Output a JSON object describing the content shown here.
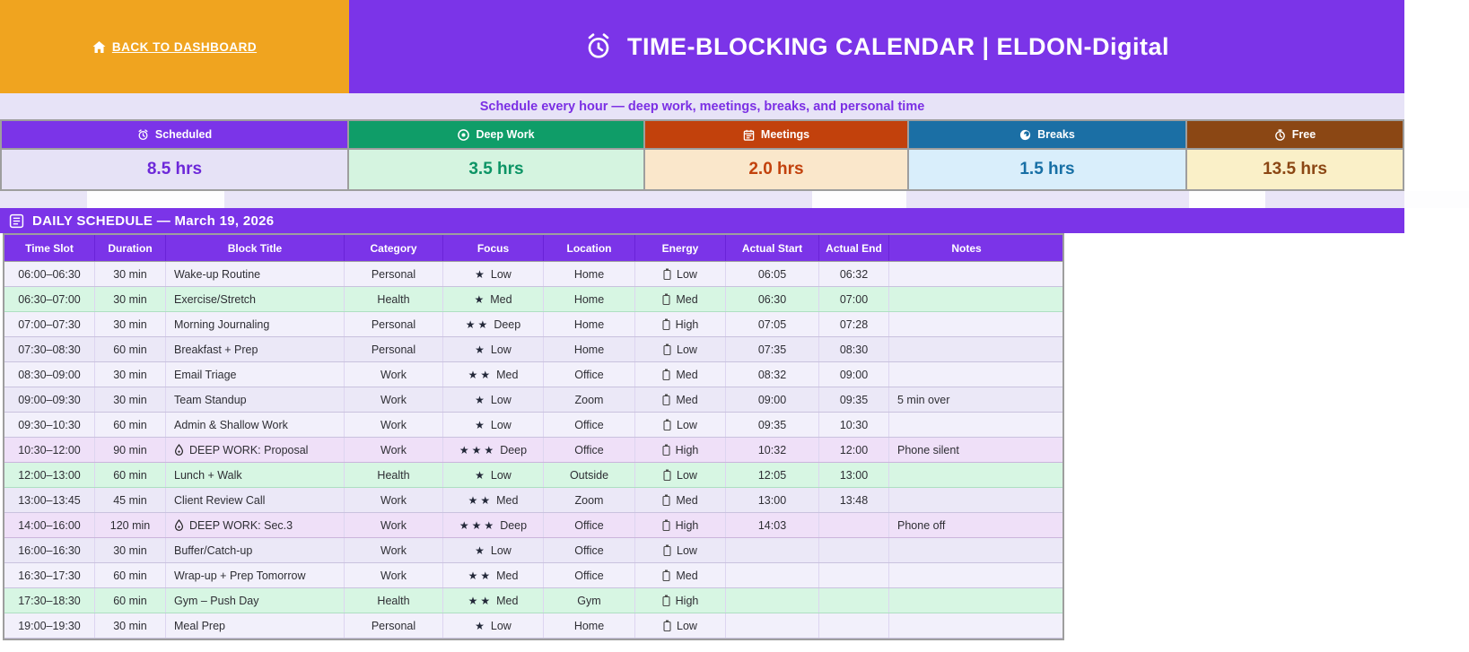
{
  "header": {
    "back_button": "BACK TO DASHBOARD",
    "title": "TIME-BLOCKING CALENDAR  |  ELDON-Digital",
    "subtitle": "Schedule every hour — deep work, meetings, breaks, and personal time",
    "brand_orange": "#F0A41F",
    "brand_purple": "#7B34E8"
  },
  "stats": [
    {
      "label": "Scheduled",
      "value": "8.5 hrs",
      "icon": "alarm-clock-icon",
      "header_bg": "#7B34E8",
      "value_bg": "#E6E2F6",
      "value_color": "#6D28D9"
    },
    {
      "label": "Deep Work",
      "value": "3.5 hrs",
      "icon": "target-icon",
      "header_bg": "#0F9D68",
      "value_bg": "#D5F4E0",
      "value_color": "#0C9465"
    },
    {
      "label": "Meetings",
      "value": "2.0 hrs",
      "icon": "calendar-icon",
      "header_bg": "#C2410C",
      "value_bg": "#FAE7CB",
      "value_color": "#C2410C"
    },
    {
      "label": "Breaks",
      "value": "1.5 hrs",
      "icon": "break-icon",
      "header_bg": "#1B6FA5",
      "value_bg": "#D9EEFB",
      "value_color": "#176FA5"
    },
    {
      "label": "Free",
      "value": "13.5 hrs",
      "icon": "stopwatch-icon",
      "header_bg": "#8B4714",
      "value_bg": "#FAF0C8",
      "value_color": "#8B4714"
    }
  ],
  "section": {
    "title": "DAILY SCHEDULE — March 19, 2026",
    "icon": "calendar-page-icon"
  },
  "table": {
    "columns": [
      "Time Slot",
      "Duration",
      "Block Title",
      "Category",
      "Focus",
      "Location",
      "Energy",
      "Actual Start",
      "Actual End",
      "Notes"
    ],
    "rows": [
      {
        "time": "06:00–06:30",
        "duration": "30 min",
        "title": "Wake-up Routine",
        "deep": false,
        "category": "Personal",
        "stars": 1,
        "focus": "Low",
        "location": "Home",
        "energy": "Low",
        "start": "06:05",
        "end": "06:32",
        "notes": "",
        "type": "default"
      },
      {
        "time": "06:30–07:00",
        "duration": "30 min",
        "title": "Exercise/Stretch",
        "deep": false,
        "category": "Health",
        "stars": 1,
        "focus": "Med",
        "location": "Home",
        "energy": "Med",
        "start": "06:30",
        "end": "07:00",
        "notes": "",
        "type": "health"
      },
      {
        "time": "07:00–07:30",
        "duration": "30 min",
        "title": "Morning Journaling",
        "deep": false,
        "category": "Personal",
        "stars": 2,
        "focus": "Deep",
        "location": "Home",
        "energy": "High",
        "start": "07:05",
        "end": "07:28",
        "notes": "",
        "type": "default"
      },
      {
        "time": "07:30–08:30",
        "duration": "60 min",
        "title": "Breakfast + Prep",
        "deep": false,
        "category": "Personal",
        "stars": 1,
        "focus": "Low",
        "location": "Home",
        "energy": "Low",
        "start": "07:35",
        "end": "08:30",
        "notes": "",
        "type": "default"
      },
      {
        "time": "08:30–09:00",
        "duration": "30 min",
        "title": "Email Triage",
        "deep": false,
        "category": "Work",
        "stars": 2,
        "focus": "Med",
        "location": "Office",
        "energy": "Med",
        "start": "08:32",
        "end": "09:00",
        "notes": "",
        "type": "default"
      },
      {
        "time": "09:00–09:30",
        "duration": "30 min",
        "title": "Team Standup",
        "deep": false,
        "category": "Work",
        "stars": 1,
        "focus": "Low",
        "location": "Zoom",
        "energy": "Med",
        "start": "09:00",
        "end": "09:35",
        "notes": "5 min over",
        "type": "default"
      },
      {
        "time": "09:30–10:30",
        "duration": "60 min",
        "title": "Admin & Shallow Work",
        "deep": false,
        "category": "Work",
        "stars": 1,
        "focus": "Low",
        "location": "Office",
        "energy": "Low",
        "start": "09:35",
        "end": "10:30",
        "notes": "",
        "type": "default"
      },
      {
        "time": "10:30–12:00",
        "duration": "90 min",
        "title": "DEEP WORK: Proposal",
        "deep": true,
        "category": "Work",
        "stars": 3,
        "focus": "Deep",
        "location": "Office",
        "energy": "High",
        "start": "10:32",
        "end": "12:00",
        "notes": "Phone silent",
        "type": "deepwork"
      },
      {
        "time": "12:00–13:00",
        "duration": "60 min",
        "title": "Lunch + Walk",
        "deep": false,
        "category": "Health",
        "stars": 1,
        "focus": "Low",
        "location": "Outside",
        "energy": "Low",
        "start": "12:05",
        "end": "13:00",
        "notes": "",
        "type": "health"
      },
      {
        "time": "13:00–13:45",
        "duration": "45 min",
        "title": "Client Review Call",
        "deep": false,
        "category": "Work",
        "stars": 2,
        "focus": "Med",
        "location": "Zoom",
        "energy": "Med",
        "start": "13:00",
        "end": "13:48",
        "notes": "",
        "type": "default"
      },
      {
        "time": "14:00–16:00",
        "duration": "120 min",
        "title": "DEEP WORK: Sec.3",
        "deep": true,
        "category": "Work",
        "stars": 3,
        "focus": "Deep",
        "location": "Office",
        "energy": "High",
        "start": "14:03",
        "end": "",
        "notes": "Phone off",
        "type": "deepwork"
      },
      {
        "time": "16:00–16:30",
        "duration": "30 min",
        "title": "Buffer/Catch-up",
        "deep": false,
        "category": "Work",
        "stars": 1,
        "focus": "Low",
        "location": "Office",
        "energy": "Low",
        "start": "",
        "end": "",
        "notes": "",
        "type": "default"
      },
      {
        "time": "16:30–17:30",
        "duration": "60 min",
        "title": "Wrap-up + Prep Tomorrow",
        "deep": false,
        "category": "Work",
        "stars": 2,
        "focus": "Med",
        "location": "Office",
        "energy": "Med",
        "start": "",
        "end": "",
        "notes": "",
        "type": "default"
      },
      {
        "time": "17:30–18:30",
        "duration": "60 min",
        "title": "Gym – Push Day",
        "deep": false,
        "category": "Health",
        "stars": 2,
        "focus": "Med",
        "location": "Gym",
        "energy": "High",
        "start": "",
        "end": "",
        "notes": "",
        "type": "health"
      },
      {
        "time": "19:00–19:30",
        "duration": "30 min",
        "title": "Meal Prep",
        "deep": false,
        "category": "Personal",
        "stars": 1,
        "focus": "Low",
        "location": "Home",
        "energy": "Low",
        "start": "",
        "end": "",
        "notes": "",
        "type": "default"
      }
    ]
  }
}
